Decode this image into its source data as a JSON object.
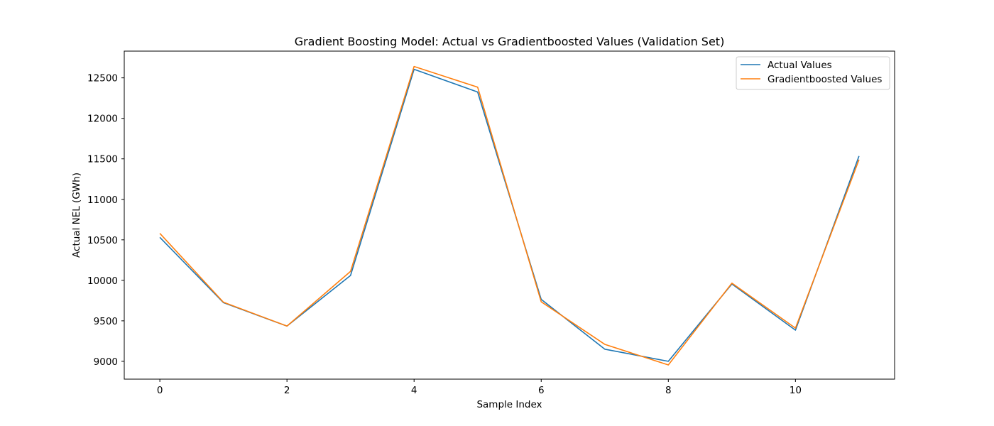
{
  "chart_data": {
    "type": "line",
    "title": "Gradient Boosting Model: Actual vs Gradientboosted Values (Validation Set)",
    "xlabel": "Sample Index",
    "ylabel": "Actual NEL (GWh)",
    "x": [
      0,
      1,
      2,
      3,
      4,
      5,
      6,
      7,
      8,
      9,
      10,
      11
    ],
    "xlim": [
      -0.56,
      11.56
    ],
    "ylim": [
      8780,
      12830
    ],
    "x_ticks": [
      0,
      2,
      4,
      6,
      8,
      10
    ],
    "y_ticks": [
      9000,
      9500,
      10000,
      10500,
      11000,
      11500,
      12000,
      12500
    ],
    "grid": false,
    "legend_position": "top-right",
    "series": [
      {
        "name": "Actual Values",
        "color": "#1f77b4",
        "values": [
          10530,
          9725,
          9435,
          10060,
          12605,
          12325,
          9765,
          9150,
          9000,
          9955,
          9385,
          11535
        ]
      },
      {
        "name": "Gradientboosted Values",
        "color": "#ff7f0e",
        "values": [
          10580,
          9730,
          9435,
          10110,
          12640,
          12385,
          9735,
          9210,
          8955,
          9965,
          9410,
          11490
        ]
      }
    ]
  }
}
